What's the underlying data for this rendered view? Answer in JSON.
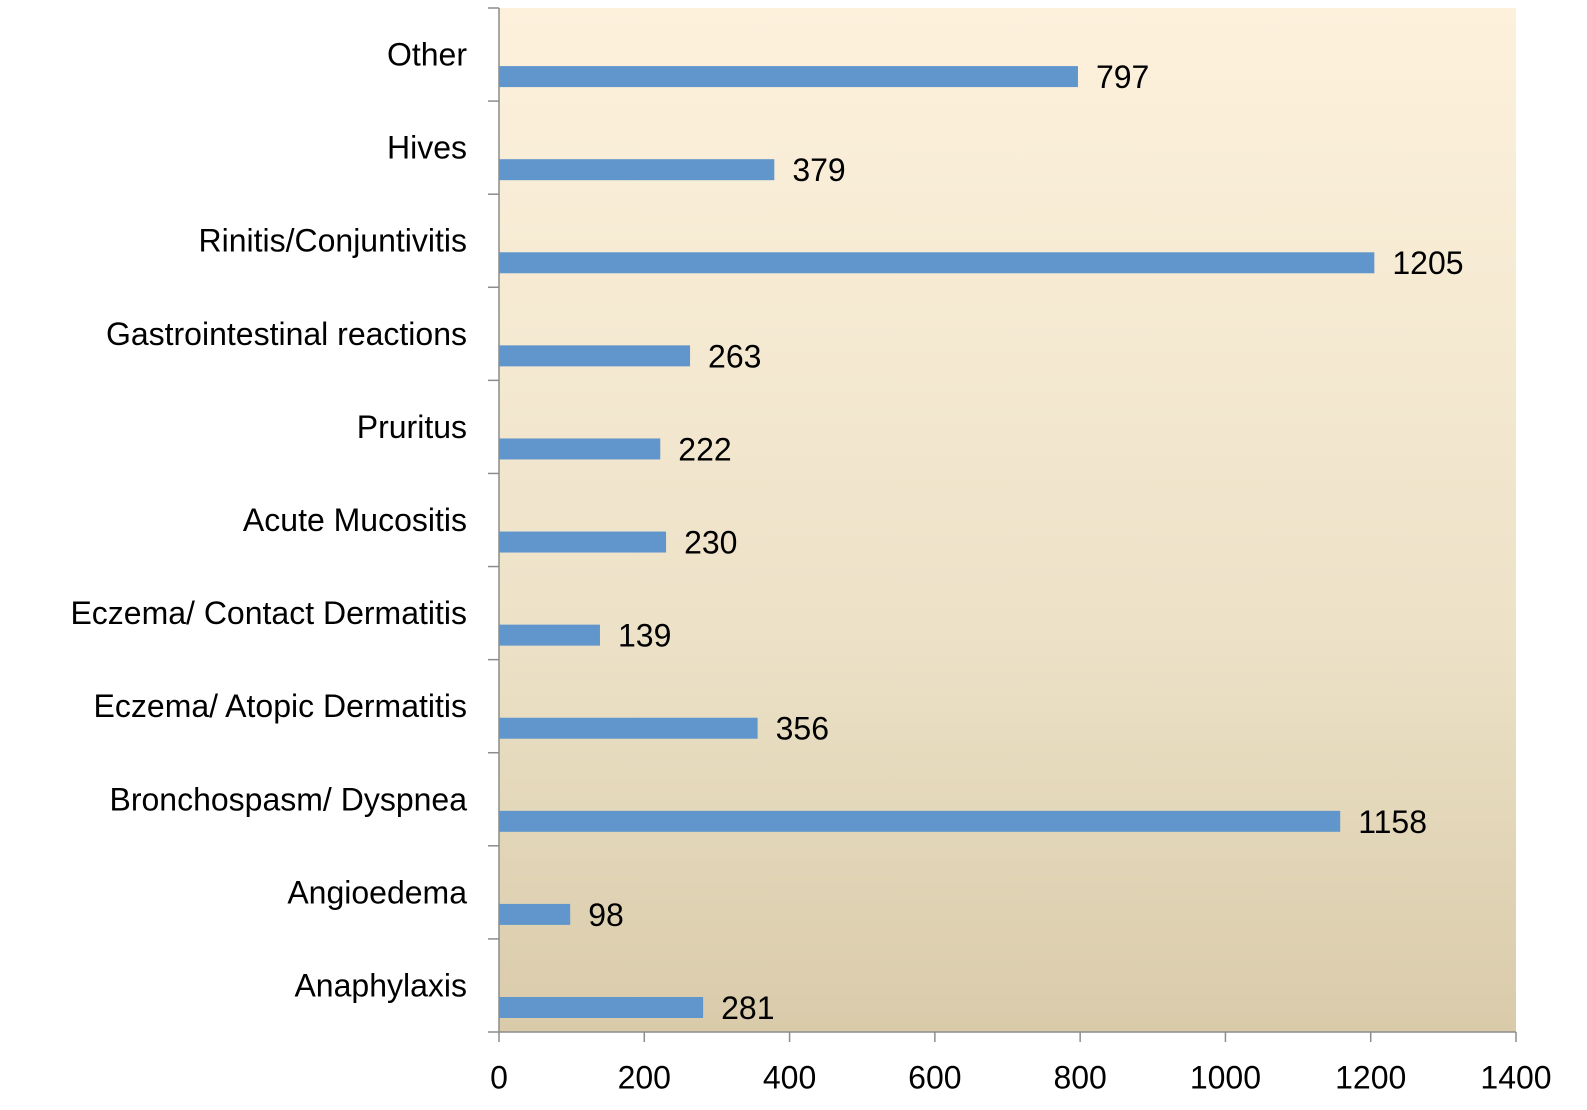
{
  "chart_data": {
    "type": "barh",
    "categories": [
      "Anaphylaxis",
      "Angioedema",
      "Bronchospasm/ Dyspnea",
      "Eczema/ Atopic Dermatitis",
      "Eczema/ Contact Dermatitis",
      "Acute Mucositis",
      "Pruritus",
      "Gastrointestinal reactions",
      "Rinitis/Conjuntivitis",
      "Hives",
      "Other"
    ],
    "values": [
      281,
      98,
      1158,
      356,
      139,
      230,
      222,
      263,
      1205,
      379,
      797
    ],
    "color": "#6196cc",
    "xlim": [
      0,
      1400
    ],
    "xticks": [
      0,
      200,
      400,
      600,
      800,
      1000,
      1200,
      1400
    ]
  }
}
